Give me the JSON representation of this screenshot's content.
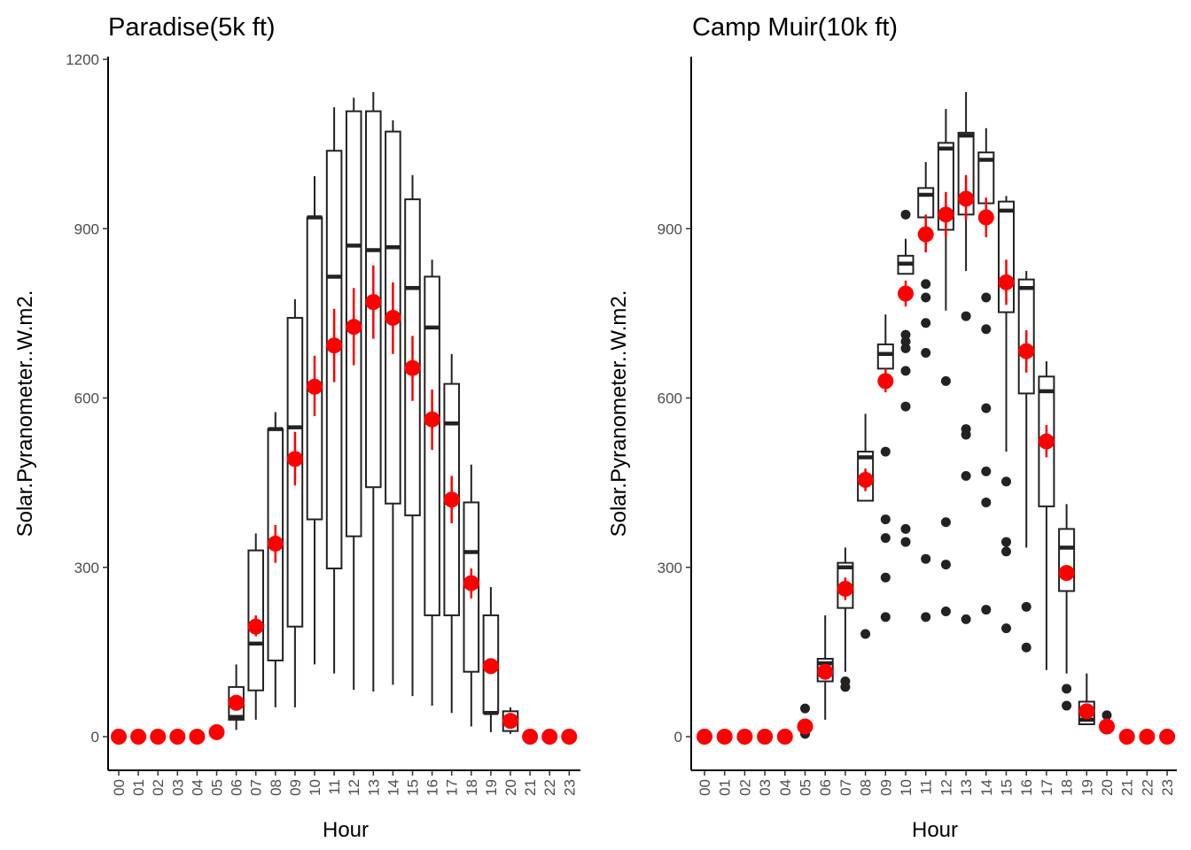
{
  "colors": {
    "box": "#222222",
    "mean": "#ff0000",
    "outlier": "#222222",
    "tick_text": "#4d4d4d"
  },
  "chart_data": [
    {
      "type": "box",
      "title": "Paradise(5k ft)",
      "xlabel": "Hour",
      "ylabel": "Solar.Pyranometer..W.m2.",
      "ylim": [
        -60,
        1200
      ],
      "yticks": [
        0,
        300,
        600,
        900,
        1200
      ],
      "categories": [
        "00",
        "01",
        "02",
        "03",
        "04",
        "05",
        "06",
        "07",
        "08",
        "09",
        "10",
        "11",
        "12",
        "13",
        "14",
        "15",
        "16",
        "17",
        "18",
        "19",
        "20",
        "21",
        "22",
        "23"
      ],
      "boxes": [
        {
          "hour": "06",
          "q1": 30,
          "median": 35,
          "q3": 88,
          "whisker_low": 12,
          "whisker_high": 128
        },
        {
          "hour": "07",
          "q1": 82,
          "median": 165,
          "q3": 330,
          "whisker_low": 30,
          "whisker_high": 360
        },
        {
          "hour": "08",
          "q1": 135,
          "median": 545,
          "q3": 545,
          "whisker_low": 52,
          "whisker_high": 575
        },
        {
          "hour": "09",
          "q1": 195,
          "median": 548,
          "q3": 742,
          "whisker_low": 52,
          "whisker_high": 775
        },
        {
          "hour": "10",
          "q1": 385,
          "median": 920,
          "q3": 920,
          "whisker_low": 128,
          "whisker_high": 993
        },
        {
          "hour": "11",
          "q1": 298,
          "median": 815,
          "q3": 1038,
          "whisker_low": 112,
          "whisker_high": 1115
        },
        {
          "hour": "12",
          "q1": 355,
          "median": 870,
          "q3": 1108,
          "whisker_low": 83,
          "whisker_high": 1132
        },
        {
          "hour": "13",
          "q1": 442,
          "median": 862,
          "q3": 1108,
          "whisker_low": 80,
          "whisker_high": 1142
        },
        {
          "hour": "14",
          "q1": 413,
          "median": 867,
          "q3": 1072,
          "whisker_low": 92,
          "whisker_high": 1092
        },
        {
          "hour": "15",
          "q1": 392,
          "median": 795,
          "q3": 952,
          "whisker_low": 72,
          "whisker_high": 995
        },
        {
          "hour": "16",
          "q1": 215,
          "median": 725,
          "q3": 815,
          "whisker_low": 55,
          "whisker_high": 845
        },
        {
          "hour": "17",
          "q1": 215,
          "median": 555,
          "q3": 625,
          "whisker_low": 42,
          "whisker_high": 678
        },
        {
          "hour": "18",
          "q1": 115,
          "median": 327,
          "q3": 415,
          "whisker_low": 18,
          "whisker_high": 482
        },
        {
          "hour": "19",
          "q1": 42,
          "median": 42,
          "q3": 215,
          "whisker_low": 8,
          "whisker_high": 265
        },
        {
          "hour": "20",
          "q1": 10,
          "median": 25,
          "q3": 45,
          "whisker_low": 5,
          "whisker_high": 52
        }
      ],
      "outliers": [],
      "means": [
        {
          "hour": "00",
          "mean": 0,
          "low": 0,
          "high": 0
        },
        {
          "hour": "01",
          "mean": 0,
          "low": 0,
          "high": 0
        },
        {
          "hour": "02",
          "mean": 0,
          "low": 0,
          "high": 0
        },
        {
          "hour": "03",
          "mean": 0,
          "low": 0,
          "high": 0
        },
        {
          "hour": "04",
          "mean": 0,
          "low": 0,
          "high": 0
        },
        {
          "hour": "05",
          "mean": 8,
          "low": 6,
          "high": 10
        },
        {
          "hour": "06",
          "mean": 60,
          "low": 55,
          "high": 66
        },
        {
          "hour": "07",
          "mean": 195,
          "low": 178,
          "high": 215
        },
        {
          "hour": "08",
          "mean": 342,
          "low": 308,
          "high": 375
        },
        {
          "hour": "09",
          "mean": 492,
          "low": 445,
          "high": 540
        },
        {
          "hour": "10",
          "mean": 620,
          "low": 568,
          "high": 675
        },
        {
          "hour": "11",
          "mean": 693,
          "low": 628,
          "high": 758
        },
        {
          "hour": "12",
          "mean": 726,
          "low": 658,
          "high": 795
        },
        {
          "hour": "13",
          "mean": 770,
          "low": 705,
          "high": 835
        },
        {
          "hour": "14",
          "mean": 742,
          "low": 678,
          "high": 805
        },
        {
          "hour": "15",
          "mean": 653,
          "low": 595,
          "high": 710
        },
        {
          "hour": "16",
          "mean": 562,
          "low": 508,
          "high": 615
        },
        {
          "hour": "17",
          "mean": 420,
          "low": 378,
          "high": 462
        },
        {
          "hour": "18",
          "mean": 272,
          "low": 245,
          "high": 298
        },
        {
          "hour": "19",
          "mean": 125,
          "low": 112,
          "high": 138
        },
        {
          "hour": "20",
          "mean": 28,
          "low": 22,
          "high": 34
        },
        {
          "hour": "21",
          "mean": 0,
          "low": 0,
          "high": 0
        },
        {
          "hour": "22",
          "mean": 0,
          "low": 0,
          "high": 0
        },
        {
          "hour": "23",
          "mean": 0,
          "low": 0,
          "high": 0
        }
      ]
    },
    {
      "type": "box",
      "title": "Camp Muir(10k ft)",
      "xlabel": "Hour",
      "ylabel": "Solar.Pyranometer..W.m2.",
      "ylim": [
        -60,
        1200
      ],
      "yticks": [
        0,
        300,
        600,
        900
      ],
      "categories": [
        "00",
        "01",
        "02",
        "03",
        "04",
        "05",
        "06",
        "07",
        "08",
        "09",
        "10",
        "11",
        "12",
        "13",
        "14",
        "15",
        "16",
        "17",
        "18",
        "19",
        "20",
        "21",
        "22",
        "23"
      ],
      "boxes": [
        {
          "hour": "06",
          "q1": 98,
          "median": 130,
          "q3": 138,
          "whisker_low": 30,
          "whisker_high": 215
        },
        {
          "hour": "07",
          "q1": 228,
          "median": 300,
          "q3": 308,
          "whisker_low": 115,
          "whisker_high": 335
        },
        {
          "hour": "08",
          "q1": 418,
          "median": 495,
          "q3": 505,
          "whisker_low": 418,
          "whisker_high": 572
        },
        {
          "hour": "09",
          "q1": 652,
          "median": 678,
          "q3": 695,
          "whisker_low": 652,
          "whisker_high": 748
        },
        {
          "hour": "10",
          "q1": 820,
          "median": 838,
          "q3": 852,
          "whisker_low": 820,
          "whisker_high": 882
        },
        {
          "hour": "11",
          "q1": 920,
          "median": 960,
          "q3": 972,
          "whisker_low": 920,
          "whisker_high": 1018
        },
        {
          "hour": "12",
          "q1": 898,
          "median": 1042,
          "q3": 1052,
          "whisker_low": 755,
          "whisker_high": 1112
        },
        {
          "hour": "13",
          "q1": 925,
          "median": 1065,
          "q3": 1070,
          "whisker_low": 825,
          "whisker_high": 1142
        },
        {
          "hour": "14",
          "q1": 945,
          "median": 1022,
          "q3": 1035,
          "whisker_low": 945,
          "whisker_high": 1078
        },
        {
          "hour": "15",
          "q1": 752,
          "median": 932,
          "q3": 948,
          "whisker_low": 505,
          "whisker_high": 958
        },
        {
          "hour": "16",
          "q1": 608,
          "median": 795,
          "q3": 810,
          "whisker_low": 335,
          "whisker_high": 825
        },
        {
          "hour": "17",
          "q1": 408,
          "median": 612,
          "q3": 638,
          "whisker_low": 118,
          "whisker_high": 665
        },
        {
          "hour": "18",
          "q1": 258,
          "median": 335,
          "q3": 368,
          "whisker_low": 112,
          "whisker_high": 412
        },
        {
          "hour": "19",
          "q1": 22,
          "median": 30,
          "q3": 62,
          "whisker_low": 22,
          "whisker_high": 112
        }
      ],
      "outliers": [
        {
          "hour": "05",
          "values": [
            5,
            50
          ]
        },
        {
          "hour": "07",
          "values": [
            88,
            98
          ]
        },
        {
          "hour": "08",
          "values": [
            182
          ]
        },
        {
          "hour": "09",
          "values": [
            212,
            282,
            352,
            385,
            505
          ]
        },
        {
          "hour": "10",
          "values": [
            345,
            368,
            585,
            648,
            688,
            700,
            712,
            925
          ]
        },
        {
          "hour": "11",
          "values": [
            212,
            315,
            680,
            733,
            778,
            802
          ]
        },
        {
          "hour": "12",
          "values": [
            222,
            305,
            380,
            630
          ]
        },
        {
          "hour": "13",
          "values": [
            208,
            462,
            535,
            545,
            745
          ]
        },
        {
          "hour": "14",
          "values": [
            225,
            415,
            470,
            582,
            722,
            778
          ]
        },
        {
          "hour": "15",
          "values": [
            192,
            328,
            345,
            452
          ]
        },
        {
          "hour": "16",
          "values": [
            158,
            230
          ]
        },
        {
          "hour": "18",
          "values": [
            55,
            85
          ]
        },
        {
          "hour": "20",
          "values": [
            20,
            38
          ]
        }
      ],
      "means": [
        {
          "hour": "00",
          "mean": 0,
          "low": 0,
          "high": 0
        },
        {
          "hour": "01",
          "mean": 0,
          "low": 0,
          "high": 0
        },
        {
          "hour": "02",
          "mean": 0,
          "low": 0,
          "high": 0
        },
        {
          "hour": "03",
          "mean": 0,
          "low": 0,
          "high": 0
        },
        {
          "hour": "04",
          "mean": 0,
          "low": 0,
          "high": 0
        },
        {
          "hour": "05",
          "mean": 18,
          "low": 15,
          "high": 22
        },
        {
          "hour": "06",
          "mean": 115,
          "low": 102,
          "high": 128
        },
        {
          "hour": "07",
          "mean": 262,
          "low": 242,
          "high": 282
        },
        {
          "hour": "08",
          "mean": 455,
          "low": 435,
          "high": 475
        },
        {
          "hour": "09",
          "mean": 630,
          "low": 610,
          "high": 652
        },
        {
          "hour": "10",
          "mean": 785,
          "low": 762,
          "high": 808
        },
        {
          "hour": "11",
          "mean": 890,
          "low": 858,
          "high": 925
        },
        {
          "hour": "12",
          "mean": 925,
          "low": 885,
          "high": 965
        },
        {
          "hour": "13",
          "mean": 953,
          "low": 915,
          "high": 995
        },
        {
          "hour": "14",
          "mean": 920,
          "low": 885,
          "high": 955
        },
        {
          "hour": "15",
          "mean": 805,
          "low": 765,
          "high": 845
        },
        {
          "hour": "16",
          "mean": 683,
          "low": 645,
          "high": 720
        },
        {
          "hour": "17",
          "mean": 523,
          "low": 495,
          "high": 552
        },
        {
          "hour": "18",
          "mean": 290,
          "low": 278,
          "high": 302
        },
        {
          "hour": "19",
          "mean": 45,
          "low": 40,
          "high": 52
        },
        {
          "hour": "20",
          "mean": 18,
          "low": 15,
          "high": 21
        },
        {
          "hour": "21",
          "mean": 0,
          "low": 0,
          "high": 0
        },
        {
          "hour": "22",
          "mean": 0,
          "low": 0,
          "high": 0
        },
        {
          "hour": "23",
          "mean": 0,
          "low": 0,
          "high": 0
        }
      ]
    }
  ]
}
